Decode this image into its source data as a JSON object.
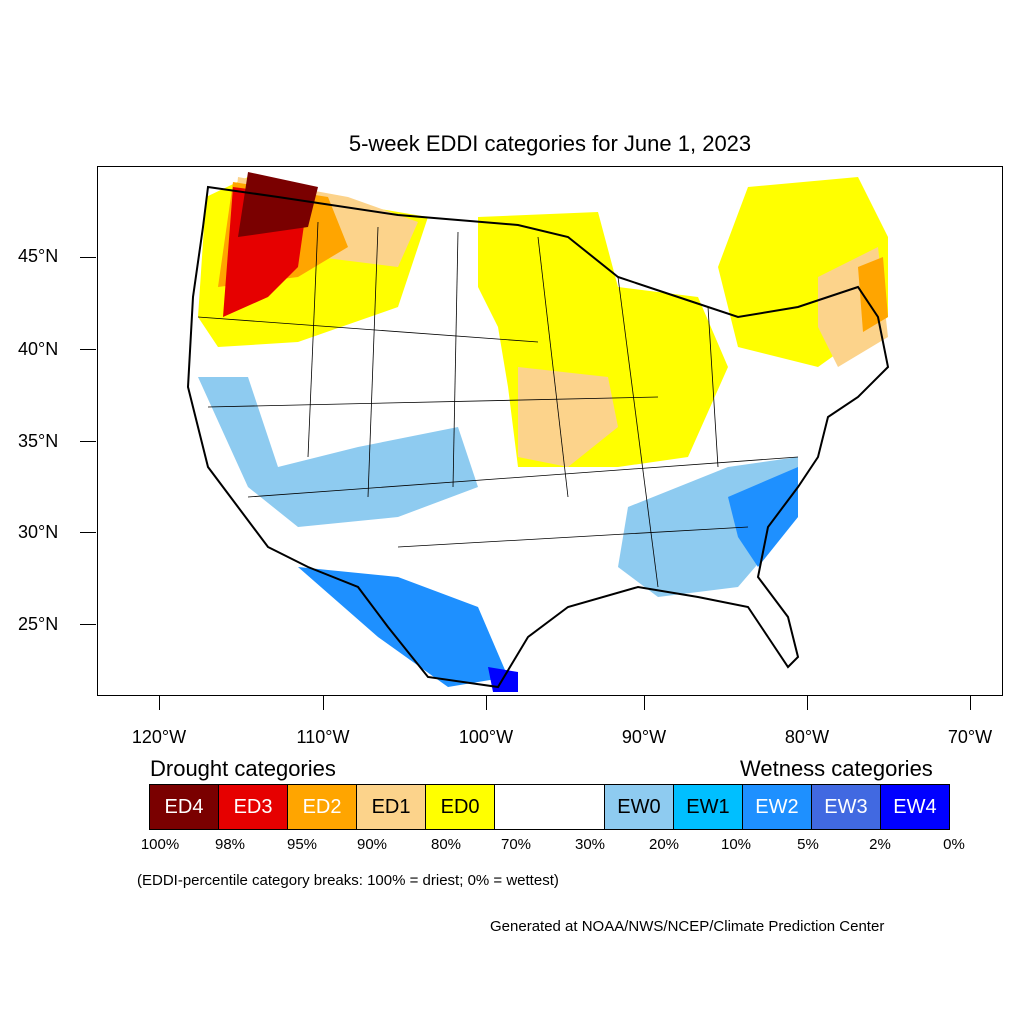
{
  "title": "5-week EDDI categories for June 1, 2023",
  "y_axis": {
    "ticks": [
      "45°N",
      "40°N",
      "35°N",
      "30°N",
      "25°N"
    ]
  },
  "x_axis": {
    "ticks": [
      "120°W",
      "110°W",
      "100°W",
      "90°W",
      "80°W",
      "70°W"
    ]
  },
  "drought_heading": "Drought categories",
  "wetness_heading": "Wetness categories",
  "legend": [
    {
      "label": "ED4",
      "color": "#7a0000",
      "text_color": "#ffffff"
    },
    {
      "label": "ED3",
      "color": "#e60000",
      "text_color": "#ffffff"
    },
    {
      "label": "ED2",
      "color": "#ffa500",
      "text_color": "#ffffff"
    },
    {
      "label": "ED1",
      "color": "#fcd38b",
      "text_color": "#000000"
    },
    {
      "label": "ED0",
      "color": "#ffff00",
      "text_color": "#000000"
    },
    {
      "label": "",
      "color": "#ffffff",
      "text_color": "#000000"
    },
    {
      "label": "EW0",
      "color": "#8ecbf0",
      "text_color": "#000000"
    },
    {
      "label": "EW1",
      "color": "#00bfff",
      "text_color": "#000000"
    },
    {
      "label": "EW2",
      "color": "#1e90ff",
      "text_color": "#ffffff"
    },
    {
      "label": "EW3",
      "color": "#4169e1",
      "text_color": "#ffffff"
    },
    {
      "label": "EW4",
      "color": "#0000ff",
      "text_color": "#ffffff"
    }
  ],
  "percent_breaks": [
    "100%",
    "98%",
    "95%",
    "90%",
    "80%",
    "70%",
    "30%",
    "20%",
    "10%",
    "5%",
    "2%",
    "0%"
  ],
  "note": "(EDDI-percentile category breaks: 100% = driest; 0% = wettest)",
  "credit": "Generated at NOAA/NWS/NCEP/Climate Prediction Center"
}
